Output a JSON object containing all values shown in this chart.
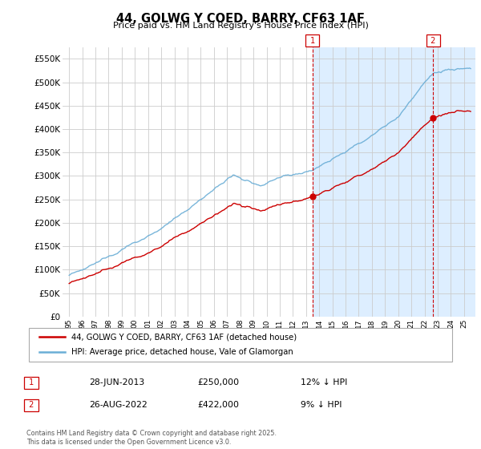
{
  "title": "44, GOLWG Y COED, BARRY, CF63 1AF",
  "subtitle": "Price paid vs. HM Land Registry's House Price Index (HPI)",
  "ylabel_ticks": [
    "£0",
    "£50K",
    "£100K",
    "£150K",
    "£200K",
    "£250K",
    "£300K",
    "£350K",
    "£400K",
    "£450K",
    "£500K",
    "£550K"
  ],
  "ytick_values": [
    0,
    50000,
    100000,
    150000,
    200000,
    250000,
    300000,
    350000,
    400000,
    450000,
    500000,
    550000
  ],
  "ylim": [
    0,
    575000
  ],
  "hpi_color": "#6baed6",
  "price_color": "#cc0000",
  "marker1_date": 2013.49,
  "marker2_date": 2022.65,
  "marker1_price": 250000,
  "marker2_price": 422000,
  "legend_label1": "44, GOLWG Y COED, BARRY, CF63 1AF (detached house)",
  "legend_label2": "HPI: Average price, detached house, Vale of Glamorgan",
  "annotation1_label": "28-JUN-2013",
  "annotation1_price": "£250,000",
  "annotation1_hpi": "12% ↓ HPI",
  "annotation2_label": "26-AUG-2022",
  "annotation2_price": "£422,000",
  "annotation2_hpi": "9% ↓ HPI",
  "footer": "Contains HM Land Registry data © Crown copyright and database right 2025.\nThis data is licensed under the Open Government Licence v3.0.",
  "shade_color": "#ddeeff",
  "grid_color": "#cccccc",
  "plot_bg": "white"
}
